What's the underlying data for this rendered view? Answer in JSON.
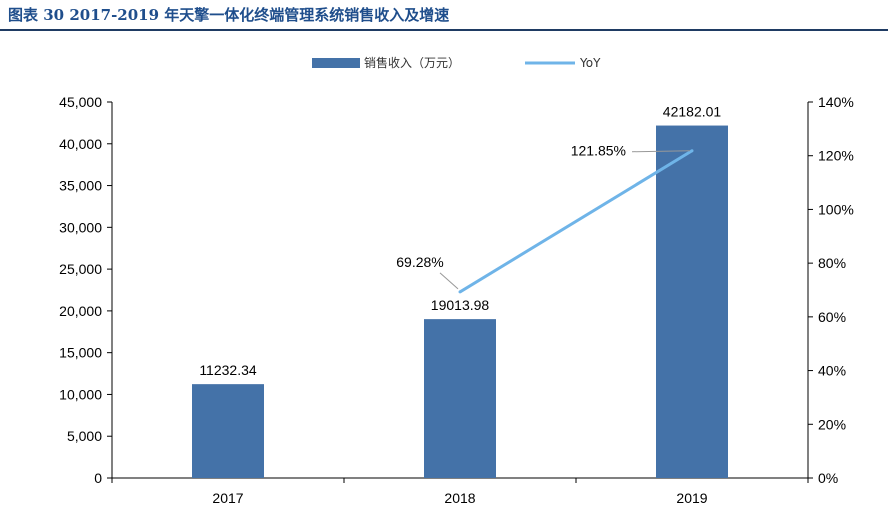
{
  "title": "图表 30 2017-2019 年天擎一体化终端管理系统销售收入及增速",
  "chart_data": {
    "type": "bar",
    "categories": [
      "2017",
      "2018",
      "2019"
    ],
    "series": [
      {
        "name": "销售收入（万元）",
        "type": "bar",
        "axis": "left",
        "values": [
          11232.34,
          19013.98,
          42182.01
        ],
        "labels": [
          "11232.34",
          "19013.98",
          "42182.01"
        ],
        "color": "#4472a8"
      },
      {
        "name": "YoY",
        "type": "line",
        "axis": "right",
        "values": [
          null,
          69.28,
          121.85
        ],
        "labels": [
          "",
          "69.28%",
          "121.85%"
        ],
        "color": "#6fb4e8"
      }
    ],
    "ylim_left": [
      0,
      45000
    ],
    "ylim_right": [
      0,
      140
    ],
    "yticks_left": [
      "0",
      "5,000",
      "10,000",
      "15,000",
      "20,000",
      "25,000",
      "30,000",
      "35,000",
      "40,000",
      "45,000"
    ],
    "yticks_right": [
      "0%",
      "20%",
      "40%",
      "60%",
      "80%",
      "100%",
      "120%",
      "140%"
    ],
    "legend": "top-center",
    "grid": false
  }
}
